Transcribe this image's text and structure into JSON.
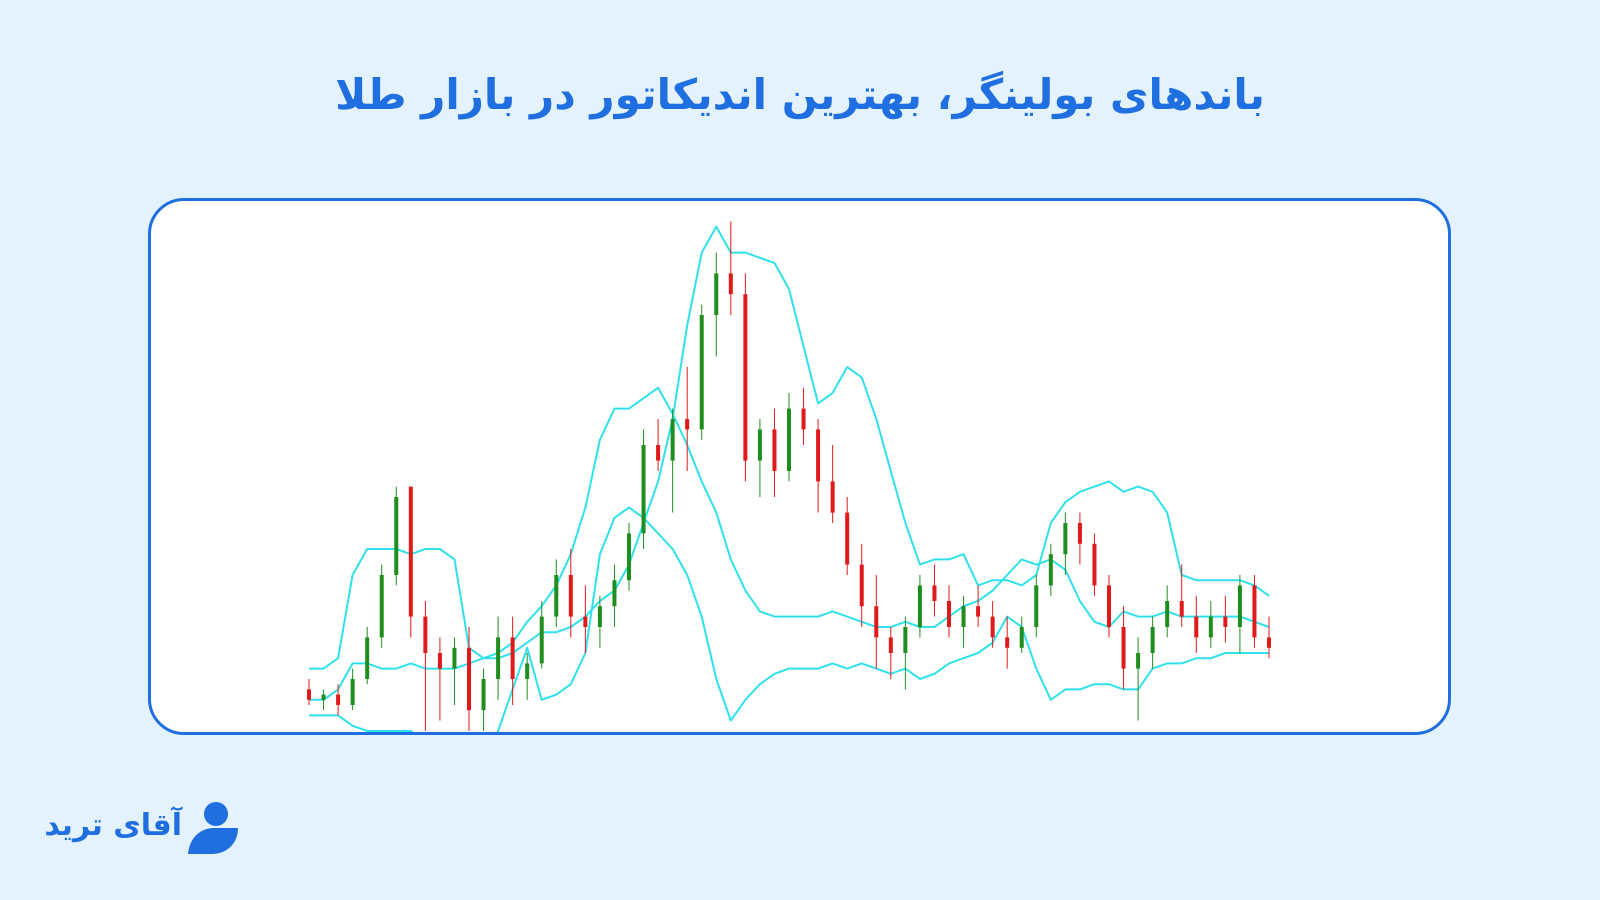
{
  "header": {
    "title": "باندهای بولینگر، بهترین اندیکاتور در بازار طلا"
  },
  "brand": {
    "name": "آقای ترید",
    "color": "#1f6fe0"
  },
  "colors": {
    "band": "#30e0ea",
    "bull": "#1e8e1e",
    "bear": "#e01a1a",
    "frame": "#1f6fe0"
  },
  "chart_data": {
    "type": "candlestick",
    "indicator": "Bollinger Bands",
    "grid": false,
    "legend": "none",
    "ylim": [
      0,
      1
    ],
    "upper_band": [
      0.12,
      0.12,
      0.14,
      0.3,
      0.35,
      0.35,
      0.35,
      0.34,
      0.35,
      0.35,
      0.33,
      0.16,
      0.14,
      0.14,
      0.15,
      0.17,
      0.19,
      0.19,
      0.2,
      0.22,
      0.25,
      0.27,
      0.32,
      0.4,
      0.48,
      0.6,
      0.78,
      0.92,
      0.97,
      0.92,
      0.92,
      0.91,
      0.9,
      0.85,
      0.74,
      0.63,
      0.65,
      0.7,
      0.68,
      0.6,
      0.5,
      0.4,
      0.32,
      0.33,
      0.33,
      0.34,
      0.28,
      0.29,
      0.29,
      0.28,
      0.3,
      0.4,
      0.44,
      0.46,
      0.47,
      0.48,
      0.46,
      0.47,
      0.46,
      0.42,
      0.3,
      0.29,
      0.29,
      0.29,
      0.29,
      0.28,
      0.26
    ],
    "middle_band": [
      0.06,
      0.06,
      0.08,
      0.13,
      0.13,
      0.12,
      0.12,
      0.13,
      0.12,
      0.12,
      0.12,
      0.13,
      0.14,
      0.15,
      0.17,
      0.21,
      0.24,
      0.28,
      0.34,
      0.43,
      0.56,
      0.62,
      0.62,
      0.64,
      0.66,
      0.61,
      0.55,
      0.48,
      0.42,
      0.33,
      0.27,
      0.23,
      0.22,
      0.22,
      0.22,
      0.22,
      0.23,
      0.22,
      0.21,
      0.2,
      0.2,
      0.21,
      0.2,
      0.2,
      0.22,
      0.24,
      0.25,
      0.27,
      0.3,
      0.33,
      0.32,
      0.33,
      0.31,
      0.25,
      0.21,
      0.2,
      0.23,
      0.22,
      0.22,
      0.23,
      0.22,
      0.22,
      0.22,
      0.22,
      0.22,
      0.21,
      0.2
    ],
    "lower_band": [
      0.03,
      0.03,
      0.03,
      0.01,
      0.0,
      0.0,
      0.0,
      0.0,
      -0.02,
      -0.03,
      -0.03,
      -0.05,
      -0.05,
      0.0,
      0.08,
      0.16,
      0.06,
      0.07,
      0.09,
      0.15,
      0.34,
      0.41,
      0.43,
      0.41,
      0.38,
      0.35,
      0.3,
      0.22,
      0.1,
      0.02,
      0.06,
      0.09,
      0.11,
      0.12,
      0.12,
      0.12,
      0.13,
      0.12,
      0.13,
      0.12,
      0.11,
      0.12,
      0.1,
      0.11,
      0.13,
      0.14,
      0.15,
      0.17,
      0.22,
      0.2,
      0.12,
      0.06,
      0.08,
      0.08,
      0.09,
      0.09,
      0.08,
      0.08,
      0.12,
      0.13,
      0.13,
      0.14,
      0.14,
      0.15,
      0.15,
      0.15,
      0.15
    ],
    "candles": [
      {
        "o": 0.08,
        "h": 0.1,
        "l": 0.05,
        "c": 0.06
      },
      {
        "o": 0.06,
        "h": 0.08,
        "l": 0.04,
        "c": 0.07
      },
      {
        "o": 0.07,
        "h": 0.09,
        "l": 0.03,
        "c": 0.05
      },
      {
        "o": 0.05,
        "h": 0.12,
        "l": 0.04,
        "c": 0.1
      },
      {
        "o": 0.1,
        "h": 0.2,
        "l": 0.09,
        "c": 0.18
      },
      {
        "o": 0.18,
        "h": 0.32,
        "l": 0.16,
        "c": 0.3
      },
      {
        "o": 0.3,
        "h": 0.47,
        "l": 0.28,
        "c": 0.45
      },
      {
        "o": 0.47,
        "h": 0.47,
        "l": 0.18,
        "c": 0.22
      },
      {
        "o": 0.22,
        "h": 0.25,
        "l": 0.0,
        "c": 0.15
      },
      {
        "o": 0.15,
        "h": 0.18,
        "l": 0.02,
        "c": 0.12
      },
      {
        "o": 0.12,
        "h": 0.18,
        "l": 0.05,
        "c": 0.16
      },
      {
        "o": 0.16,
        "h": 0.2,
        "l": 0.0,
        "c": 0.04
      },
      {
        "o": 0.04,
        "h": 0.12,
        "l": 0.0,
        "c": 0.1
      },
      {
        "o": 0.1,
        "h": 0.22,
        "l": 0.06,
        "c": 0.18
      },
      {
        "o": 0.18,
        "h": 0.22,
        "l": 0.05,
        "c": 0.1
      },
      {
        "o": 0.1,
        "h": 0.15,
        "l": 0.06,
        "c": 0.13
      },
      {
        "o": 0.13,
        "h": 0.25,
        "l": 0.12,
        "c": 0.22
      },
      {
        "o": 0.22,
        "h": 0.33,
        "l": 0.2,
        "c": 0.3
      },
      {
        "o": 0.3,
        "h": 0.35,
        "l": 0.18,
        "c": 0.22
      },
      {
        "o": 0.22,
        "h": 0.28,
        "l": 0.15,
        "c": 0.2
      },
      {
        "o": 0.2,
        "h": 0.26,
        "l": 0.16,
        "c": 0.24
      },
      {
        "o": 0.24,
        "h": 0.32,
        "l": 0.2,
        "c": 0.29
      },
      {
        "o": 0.29,
        "h": 0.4,
        "l": 0.27,
        "c": 0.38
      },
      {
        "o": 0.38,
        "h": 0.58,
        "l": 0.35,
        "c": 0.55
      },
      {
        "o": 0.55,
        "h": 0.6,
        "l": 0.5,
        "c": 0.52
      },
      {
        "o": 0.52,
        "h": 0.62,
        "l": 0.42,
        "c": 0.6
      },
      {
        "o": 0.6,
        "h": 0.7,
        "l": 0.5,
        "c": 0.58
      },
      {
        "o": 0.58,
        "h": 0.82,
        "l": 0.56,
        "c": 0.8
      },
      {
        "o": 0.8,
        "h": 0.92,
        "l": 0.72,
        "c": 0.88
      },
      {
        "o": 0.88,
        "h": 0.98,
        "l": 0.8,
        "c": 0.84
      },
      {
        "o": 0.84,
        "h": 0.88,
        "l": 0.48,
        "c": 0.52
      },
      {
        "o": 0.52,
        "h": 0.6,
        "l": 0.45,
        "c": 0.58
      },
      {
        "o": 0.58,
        "h": 0.62,
        "l": 0.45,
        "c": 0.5
      },
      {
        "o": 0.5,
        "h": 0.65,
        "l": 0.48,
        "c": 0.62
      },
      {
        "o": 0.62,
        "h": 0.66,
        "l": 0.55,
        "c": 0.58
      },
      {
        "o": 0.58,
        "h": 0.6,
        "l": 0.42,
        "c": 0.48
      },
      {
        "o": 0.48,
        "h": 0.55,
        "l": 0.4,
        "c": 0.42
      },
      {
        "o": 0.42,
        "h": 0.45,
        "l": 0.3,
        "c": 0.32
      },
      {
        "o": 0.32,
        "h": 0.36,
        "l": 0.2,
        "c": 0.24
      },
      {
        "o": 0.24,
        "h": 0.3,
        "l": 0.12,
        "c": 0.18
      },
      {
        "o": 0.18,
        "h": 0.2,
        "l": 0.1,
        "c": 0.15
      },
      {
        "o": 0.15,
        "h": 0.22,
        "l": 0.08,
        "c": 0.2
      },
      {
        "o": 0.2,
        "h": 0.3,
        "l": 0.18,
        "c": 0.28
      },
      {
        "o": 0.28,
        "h": 0.32,
        "l": 0.22,
        "c": 0.25
      },
      {
        "o": 0.25,
        "h": 0.28,
        "l": 0.18,
        "c": 0.2
      },
      {
        "o": 0.2,
        "h": 0.26,
        "l": 0.16,
        "c": 0.24
      },
      {
        "o": 0.24,
        "h": 0.28,
        "l": 0.2,
        "c": 0.22
      },
      {
        "o": 0.22,
        "h": 0.25,
        "l": 0.16,
        "c": 0.18
      },
      {
        "o": 0.18,
        "h": 0.22,
        "l": 0.12,
        "c": 0.16
      },
      {
        "o": 0.16,
        "h": 0.22,
        "l": 0.15,
        "c": 0.2
      },
      {
        "o": 0.2,
        "h": 0.3,
        "l": 0.18,
        "c": 0.28
      },
      {
        "o": 0.28,
        "h": 0.36,
        "l": 0.26,
        "c": 0.34
      },
      {
        "o": 0.34,
        "h": 0.42,
        "l": 0.3,
        "c": 0.4
      },
      {
        "o": 0.4,
        "h": 0.42,
        "l": 0.32,
        "c": 0.36
      },
      {
        "o": 0.36,
        "h": 0.38,
        "l": 0.26,
        "c": 0.28
      },
      {
        "o": 0.28,
        "h": 0.3,
        "l": 0.18,
        "c": 0.2
      },
      {
        "o": 0.2,
        "h": 0.24,
        "l": 0.08,
        "c": 0.12
      },
      {
        "o": 0.12,
        "h": 0.18,
        "l": 0.02,
        "c": 0.15
      },
      {
        "o": 0.15,
        "h": 0.22,
        "l": 0.12,
        "c": 0.2
      },
      {
        "o": 0.2,
        "h": 0.28,
        "l": 0.18,
        "c": 0.25
      },
      {
        "o": 0.25,
        "h": 0.32,
        "l": 0.2,
        "c": 0.22
      },
      {
        "o": 0.22,
        "h": 0.26,
        "l": 0.15,
        "c": 0.18
      },
      {
        "o": 0.18,
        "h": 0.25,
        "l": 0.16,
        "c": 0.22
      },
      {
        "o": 0.22,
        "h": 0.26,
        "l": 0.17,
        "c": 0.2
      },
      {
        "o": 0.2,
        "h": 0.3,
        "l": 0.15,
        "c": 0.28
      },
      {
        "o": 0.28,
        "h": 0.3,
        "l": 0.16,
        "c": 0.18
      },
      {
        "o": 0.18,
        "h": 0.22,
        "l": 0.14,
        "c": 0.16
      }
    ]
  }
}
